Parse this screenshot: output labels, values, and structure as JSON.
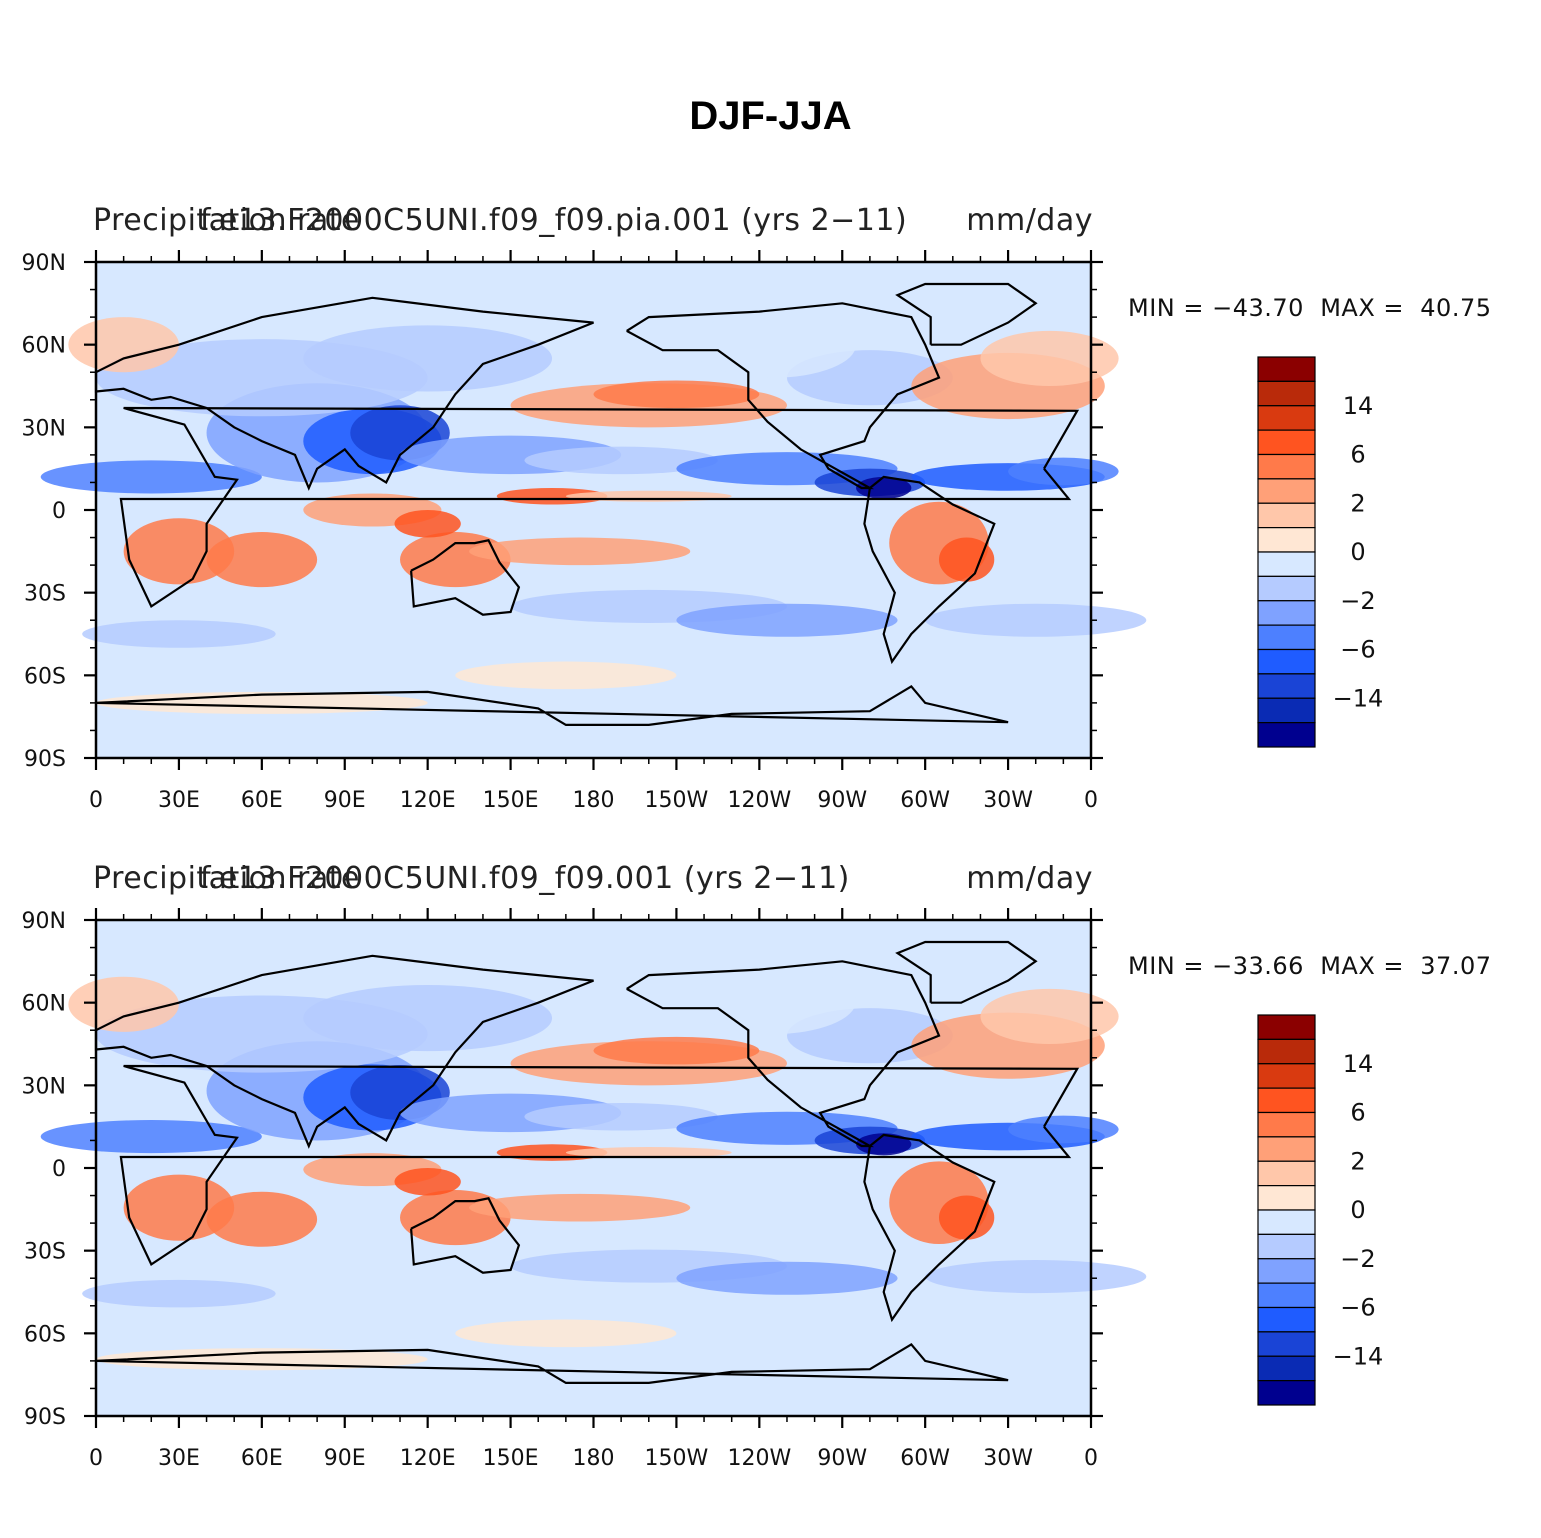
{
  "figure_title": "DJF-JJA",
  "colors": [
    "#00008f",
    "#0a2bb4",
    "#1a44d6",
    "#1f5cff",
    "#4d80ff",
    "#7fa2ff",
    "#b5cbff",
    "#d7e8ff",
    "#ffe7d4",
    "#ffc7aa",
    "#ffa078",
    "#ff7a4a",
    "#ff5420",
    "#d93a10",
    "#b92a0a",
    "#8b0000"
  ],
  "colorbar_labels": [
    "14",
    "6",
    "2",
    "0",
    "−2",
    "−6",
    "−14"
  ],
  "x_ticks": [
    "0",
    "30E",
    "60E",
    "90E",
    "120E",
    "150E",
    "180",
    "150W",
    "120W",
    "90W",
    "60W",
    "30W",
    "0"
  ],
  "y_ticks": [
    "90N",
    "60N",
    "30N",
    "0",
    "30S",
    "60S",
    "90S"
  ],
  "panels": [
    {
      "left_title": "Precipitation rate",
      "center_title": "f.e13.F2000C5UNI.f09_f09.pia.001 (yrs 2−11)",
      "right_title": "mm/day",
      "min_label": "MIN = ",
      "min_value": "−43.70",
      "max_label": "MAX = ",
      "max_value": "40.75"
    },
    {
      "left_title": "Precipitation rate",
      "center_title": "f.e13.F2000C5UNI.f09_f09.001 (yrs 2−11)",
      "right_title": "mm/day",
      "min_label": "MIN = ",
      "min_value": "−33.66",
      "max_label": "MAX = ",
      "max_value": "37.07"
    }
  ]
}
